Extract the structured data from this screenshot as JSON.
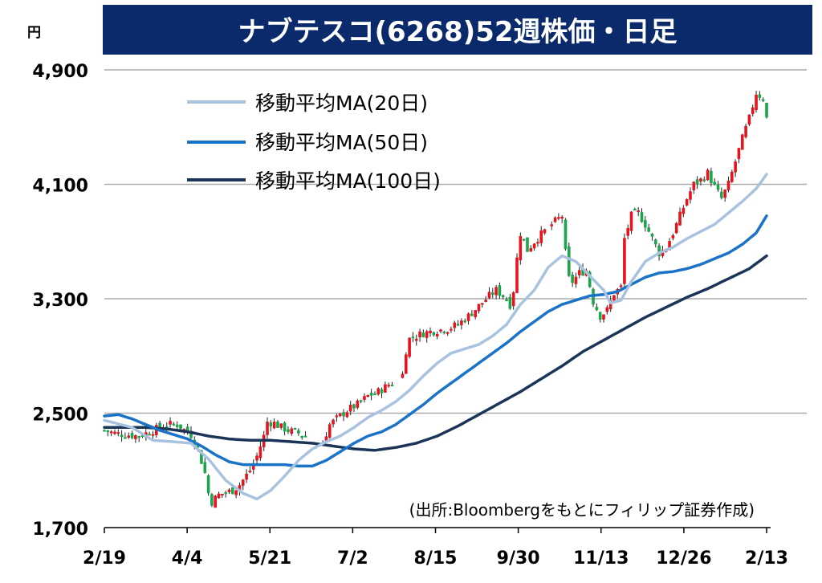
{
  "title": "ナブテスコ(6268)52週株価・日足",
  "unit_label": "円",
  "source_note": "(出所:Bloombergをもとにフィリップ証券作成)",
  "colors": {
    "title_bg": "#0b2a6b",
    "title_text": "#ffffff",
    "grid": "#aaaaaa",
    "up": "#e6141e",
    "down": "#1aa64a",
    "ma20": "#a9c2df",
    "ma50": "#1a73c6",
    "ma100": "#1b3558"
  },
  "chart_data": {
    "type": "candlestick_with_moving_averages",
    "title": "ナブテスコ(6268)52週株価・日足",
    "ylabel": "円",
    "ylim": [
      1700,
      4900
    ],
    "yticks": [
      1700,
      2500,
      3300,
      4100,
      4900
    ],
    "ytick_labels": [
      "1,700",
      "2,500",
      "3,300",
      "4,100",
      "4,900"
    ],
    "xtick_labels": [
      "2/19",
      "4/4",
      "5/21",
      "7/2",
      "8/15",
      "9/30",
      "11/13",
      "12/26",
      "2/13"
    ],
    "grid": true,
    "legend_position": "top-left",
    "legend": [
      "移動平均MA(20日)",
      "移動平均MA(50日)",
      "移動平均MA(100日)"
    ],
    "price_path": [
      [
        0,
        2380
      ],
      [
        3,
        2360
      ],
      [
        6,
        2350
      ],
      [
        10,
        2340
      ],
      [
        14,
        2380
      ],
      [
        18,
        2420
      ],
      [
        21,
        2420
      ],
      [
        25,
        2350
      ],
      [
        27,
        2250
      ],
      [
        29,
        2080
      ],
      [
        30,
        1940
      ],
      [
        31,
        1880
      ],
      [
        33,
        1930
      ],
      [
        37,
        1960
      ],
      [
        39,
        2000
      ],
      [
        42,
        2100
      ],
      [
        44,
        2200
      ],
      [
        46,
        2340
      ],
      [
        47,
        2440
      ],
      [
        49,
        2430
      ],
      [
        51,
        2400
      ],
      [
        53,
        2380
      ],
      [
        56,
        2360
      ],
      [
        59,
        2330
      ],
      [
        63,
        2300
      ],
      [
        65,
        2420
      ],
      [
        67,
        2460
      ],
      [
        70,
        2520
      ],
      [
        73,
        2560
      ],
      [
        76,
        2620
      ],
      [
        79,
        2650
      ],
      [
        82,
        2700
      ],
      [
        85,
        2740
      ],
      [
        86,
        2770
      ],
      [
        87,
        2940
      ],
      [
        88,
        3020
      ],
      [
        92,
        3060
      ],
      [
        96,
        3080
      ],
      [
        99,
        3090
      ],
      [
        102,
        3120
      ],
      [
        105,
        3180
      ],
      [
        108,
        3250
      ],
      [
        111,
        3320
      ],
      [
        113,
        3360
      ],
      [
        116,
        3300
      ],
      [
        117,
        3260
      ],
      [
        118,
        3360
      ],
      [
        119,
        3580
      ],
      [
        120,
        3760
      ],
      [
        122,
        3640
      ],
      [
        124,
        3700
      ],
      [
        126,
        3750
      ],
      [
        129,
        3820
      ],
      [
        132,
        3880
      ],
      [
        133,
        3620
      ],
      [
        134,
        3440
      ],
      [
        135,
        3420
      ],
      [
        137,
        3480
      ],
      [
        139,
        3500
      ],
      [
        141,
        3280
      ],
      [
        143,
        3180
      ],
      [
        145,
        3220
      ],
      [
        147,
        3340
      ],
      [
        149,
        3380
      ],
      [
        150,
        3720
      ],
      [
        152,
        3880
      ],
      [
        154,
        3900
      ],
      [
        156,
        3820
      ],
      [
        158,
        3720
      ],
      [
        160,
        3620
      ],
      [
        162,
        3660
      ],
      [
        164,
        3760
      ],
      [
        166,
        3880
      ],
      [
        168,
        4000
      ],
      [
        170,
        4100
      ],
      [
        172,
        4130
      ],
      [
        174,
        4180
      ],
      [
        176,
        4080
      ],
      [
        178,
        4000
      ],
      [
        180,
        4100
      ],
      [
        182,
        4260
      ],
      [
        184,
        4420
      ],
      [
        186,
        4560
      ],
      [
        188,
        4740
      ],
      [
        190,
        4700
      ],
      [
        191,
        4560
      ]
    ],
    "ma20": [
      [
        0,
        2450
      ],
      [
        8,
        2400
      ],
      [
        14,
        2310
      ],
      [
        20,
        2300
      ],
      [
        25,
        2290
      ],
      [
        30,
        2180
      ],
      [
        35,
        2030
      ],
      [
        40,
        1940
      ],
      [
        44,
        1900
      ],
      [
        48,
        1960
      ],
      [
        52,
        2060
      ],
      [
        56,
        2170
      ],
      [
        60,
        2250
      ],
      [
        64,
        2300
      ],
      [
        68,
        2340
      ],
      [
        72,
        2400
      ],
      [
        76,
        2470
      ],
      [
        80,
        2520
      ],
      [
        84,
        2580
      ],
      [
        88,
        2660
      ],
      [
        92,
        2760
      ],
      [
        96,
        2850
      ],
      [
        100,
        2920
      ],
      [
        104,
        2950
      ],
      [
        108,
        2980
      ],
      [
        112,
        3040
      ],
      [
        116,
        3120
      ],
      [
        120,
        3260
      ],
      [
        124,
        3360
      ],
      [
        128,
        3520
      ],
      [
        132,
        3600
      ],
      [
        136,
        3560
      ],
      [
        140,
        3460
      ],
      [
        144,
        3360
      ],
      [
        146,
        3270
      ],
      [
        149,
        3290
      ],
      [
        152,
        3420
      ],
      [
        156,
        3560
      ],
      [
        160,
        3620
      ],
      [
        164,
        3660
      ],
      [
        168,
        3720
      ],
      [
        172,
        3770
      ],
      [
        176,
        3820
      ],
      [
        180,
        3900
      ],
      [
        184,
        3980
      ],
      [
        188,
        4070
      ],
      [
        191,
        4170
      ]
    ],
    "ma50": [
      [
        0,
        2480
      ],
      [
        4,
        2490
      ],
      [
        8,
        2460
      ],
      [
        12,
        2420
      ],
      [
        16,
        2380
      ],
      [
        20,
        2350
      ],
      [
        24,
        2320
      ],
      [
        28,
        2270
      ],
      [
        32,
        2210
      ],
      [
        36,
        2160
      ],
      [
        40,
        2140
      ],
      [
        44,
        2140
      ],
      [
        48,
        2140
      ],
      [
        52,
        2140
      ],
      [
        56,
        2130
      ],
      [
        60,
        2130
      ],
      [
        64,
        2170
      ],
      [
        68,
        2230
      ],
      [
        72,
        2290
      ],
      [
        76,
        2340
      ],
      [
        80,
        2370
      ],
      [
        84,
        2420
      ],
      [
        88,
        2490
      ],
      [
        92,
        2560
      ],
      [
        96,
        2640
      ],
      [
        100,
        2710
      ],
      [
        104,
        2780
      ],
      [
        108,
        2850
      ],
      [
        112,
        2920
      ],
      [
        116,
        2990
      ],
      [
        120,
        3070
      ],
      [
        124,
        3140
      ],
      [
        128,
        3210
      ],
      [
        132,
        3260
      ],
      [
        136,
        3290
      ],
      [
        140,
        3320
      ],
      [
        144,
        3330
      ],
      [
        148,
        3350
      ],
      [
        152,
        3400
      ],
      [
        156,
        3450
      ],
      [
        160,
        3480
      ],
      [
        164,
        3490
      ],
      [
        168,
        3510
      ],
      [
        172,
        3540
      ],
      [
        176,
        3580
      ],
      [
        180,
        3620
      ],
      [
        184,
        3680
      ],
      [
        188,
        3760
      ],
      [
        191,
        3880
      ]
    ],
    "ma100": [
      [
        0,
        2400
      ],
      [
        6,
        2400
      ],
      [
        12,
        2400
      ],
      [
        18,
        2390
      ],
      [
        24,
        2370
      ],
      [
        30,
        2340
      ],
      [
        36,
        2320
      ],
      [
        42,
        2310
      ],
      [
        48,
        2310
      ],
      [
        54,
        2300
      ],
      [
        60,
        2290
      ],
      [
        66,
        2270
      ],
      [
        72,
        2250
      ],
      [
        78,
        2240
      ],
      [
        84,
        2260
      ],
      [
        90,
        2290
      ],
      [
        96,
        2340
      ],
      [
        102,
        2410
      ],
      [
        108,
        2490
      ],
      [
        114,
        2570
      ],
      [
        120,
        2650
      ],
      [
        126,
        2740
      ],
      [
        132,
        2830
      ],
      [
        138,
        2930
      ],
      [
        144,
        3010
      ],
      [
        150,
        3090
      ],
      [
        156,
        3170
      ],
      [
        162,
        3240
      ],
      [
        168,
        3310
      ],
      [
        174,
        3370
      ],
      [
        180,
        3440
      ],
      [
        186,
        3510
      ],
      [
        191,
        3600
      ]
    ]
  }
}
